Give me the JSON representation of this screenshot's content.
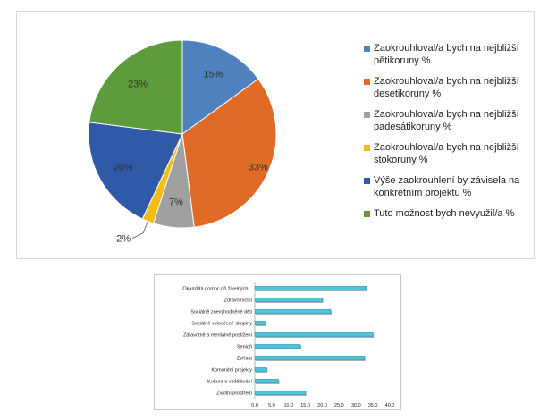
{
  "chart_data": [
    {
      "type": "pie",
      "title": "",
      "legend_position": "right",
      "slices": [
        {
          "name": "Zaokrouhloval/a  bych na nejbližší pětikoruny %",
          "value": 15,
          "label": "15%",
          "color": "#4e81bd"
        },
        {
          "name": "Zaokrouhloval/a  bych na nejbližší desetikoruny %",
          "value": 33,
          "label": "33%",
          "color": "#e06b26"
        },
        {
          "name": "Zaokrouhloval/a  bych na nejbližší padesátikoruny %",
          "value": 7,
          "label": "7%",
          "color": "#a0a0a0"
        },
        {
          "name": "Zaokrouhloval/a  bych na nejbližší stokoruny %",
          "value": 2,
          "label": "2%",
          "color": "#f2bc11"
        },
        {
          "name": "Výše zaokrouhlení by závisela na konkrétním projektu %",
          "value": 20,
          "label": "20%",
          "color": "#3059a8"
        },
        {
          "name": "Tuto možnost bych nevyužil/a %",
          "value": 23,
          "label": "23%",
          "color": "#5d9c3a"
        }
      ]
    },
    {
      "type": "bar",
      "orientation": "horizontal",
      "title": "",
      "xlabel": "",
      "ylabel": "",
      "xlim": [
        0,
        40
      ],
      "xticks": [
        "0,0",
        "5,0",
        "10,0",
        "15,0",
        "20,0",
        "25,0",
        "30,0",
        "35,0",
        "40,0"
      ],
      "bar_color": "#4fc3d9",
      "categories": [
        "Okamžitá pomoc při živelných...",
        "Zdravotnictví",
        "Sociálně znevýhodněné děti",
        "Sociálně vyloučené skupiny",
        "Zdravotně a mentálně postižení",
        "Senioři",
        "Zvířata",
        "Komunitní projekty",
        "Kultura a vzdělávání",
        "Životní prostředí"
      ],
      "values": [
        33,
        20,
        22.5,
        3,
        35,
        13.5,
        32.5,
        3.5,
        7,
        15
      ]
    }
  ]
}
